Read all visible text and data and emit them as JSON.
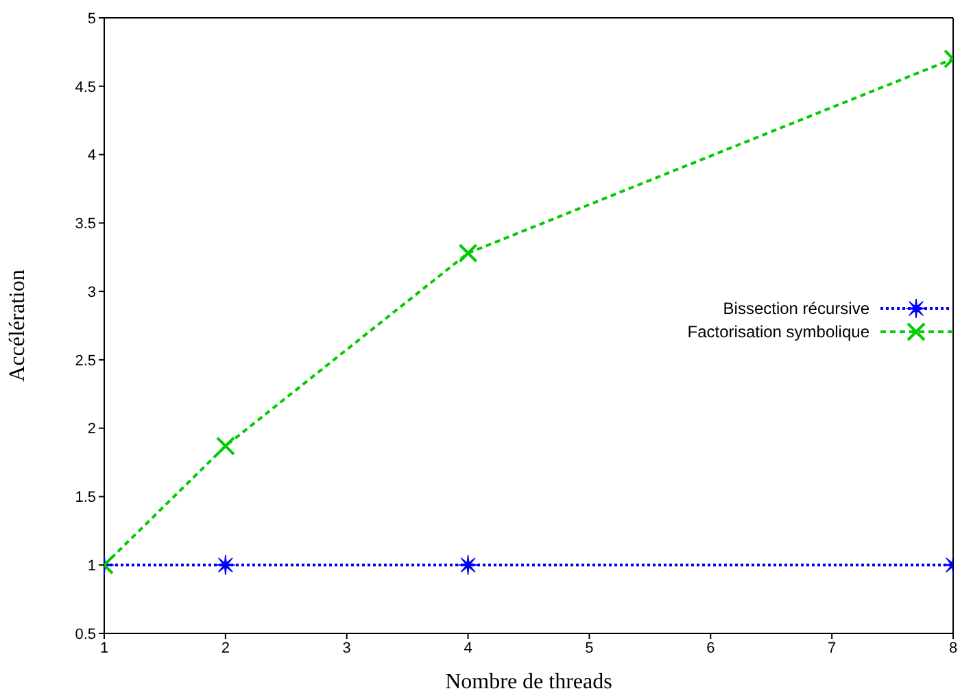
{
  "chart_data": {
    "type": "line",
    "xlabel": "Nombre de threads",
    "ylabel": "Accélération",
    "x": [
      1,
      2,
      4,
      8
    ],
    "series": [
      {
        "name": "Bissection récursive",
        "color": "#0000ff",
        "values": [
          1,
          1,
          1,
          1
        ],
        "marker": "star",
        "line_style": "dotted"
      },
      {
        "name": "Factorisation symbolique",
        "color": "#00cc00",
        "values": [
          1,
          1.87,
          3.28,
          4.7
        ],
        "marker": "cross",
        "line_style": "dashed"
      }
    ],
    "xlim": [
      1,
      8
    ],
    "xticks": [
      1,
      2,
      3,
      4,
      5,
      6,
      7,
      8
    ],
    "ylim": [
      0.5,
      5
    ],
    "yticks": [
      0.5,
      1,
      1.5,
      2,
      2.5,
      3,
      3.5,
      4,
      4.5,
      5
    ],
    "grid": false,
    "legend": "right"
  }
}
